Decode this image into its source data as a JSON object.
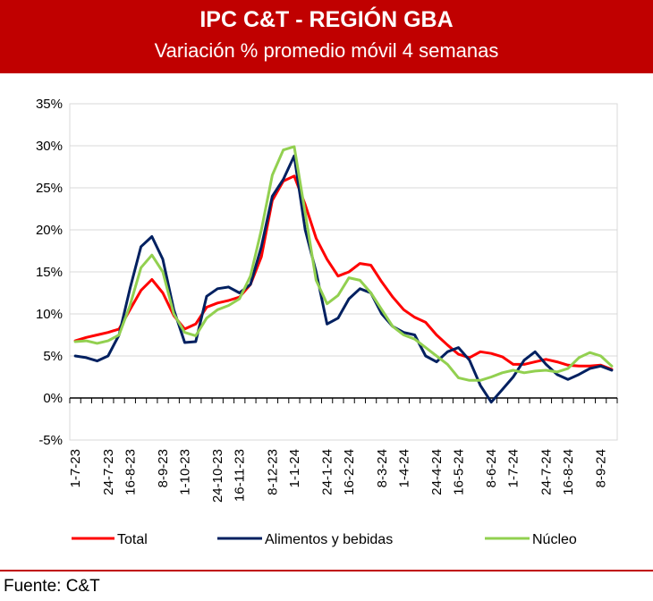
{
  "header": {
    "title": "IPC C&T - REGIÓN GBA",
    "subtitle": "Variación % promedio móvil 4 semanas"
  },
  "footer": {
    "source": "Fuente: C&T"
  },
  "chart_data": {
    "type": "line",
    "title": "IPC C&T - REGIÓN GBA",
    "subtitle": "Variación % promedio móvil 4 semanas",
    "xlabel": "",
    "ylabel": "",
    "ylim": [
      -5,
      35
    ],
    "y_ticks": [
      "-5%",
      "0%",
      "5%",
      "10%",
      "15%",
      "20%",
      "25%",
      "30%",
      "35%"
    ],
    "y_tick_values": [
      -5,
      0,
      5,
      10,
      15,
      20,
      25,
      30,
      35
    ],
    "x_tick_labels": [
      "1-7-23",
      "24-7-23",
      "16-8-23",
      "8-9-23",
      "1-10-23",
      "24-10-23",
      "16-11-23",
      "8-12-23",
      "1-1-24",
      "24-1-24",
      "16-2-24",
      "8-3-24",
      "1-4-24",
      "24-4-24",
      "16-5-24",
      "8-6-24",
      "1-7-24",
      "24-7-24",
      "16-8-24",
      "8-9-24"
    ],
    "grid": "horizontal",
    "legend_position": "bottom",
    "colors": {
      "Total": "#ff0000",
      "Alimentos y bebidas": "#002060",
      "Núcleo": "#92d050"
    },
    "series": [
      {
        "name": "Total",
        "color": "#ff0000",
        "values": [
          6.8,
          7.2,
          7.5,
          7.8,
          8.2,
          10.5,
          12.8,
          14.1,
          12.5,
          9.8,
          8.2,
          8.8,
          10.8,
          11.3,
          11.6,
          12.0,
          13.5,
          16.8,
          23.5,
          25.8,
          26.4,
          23.0,
          19.0,
          16.5,
          14.5,
          15.0,
          16.0,
          15.8,
          13.8,
          12.0,
          10.5,
          9.6,
          9.0,
          7.5,
          6.3,
          5.2,
          4.8,
          5.5,
          5.3,
          4.9,
          4.0,
          4.0,
          4.3,
          4.6,
          4.3,
          3.9,
          3.8,
          3.8,
          3.9,
          3.4
        ]
      },
      {
        "name": "Alimentos y bebidas",
        "color": "#002060",
        "values": [
          5.0,
          4.8,
          4.4,
          5.0,
          7.5,
          13.0,
          18.0,
          19.2,
          16.5,
          10.5,
          6.6,
          6.7,
          12.1,
          13.0,
          13.2,
          12.5,
          13.5,
          18.0,
          24.0,
          26.0,
          28.8,
          20.0,
          15.0,
          8.8,
          9.5,
          11.8,
          13.0,
          12.5,
          10.0,
          8.5,
          7.8,
          7.5,
          5.0,
          4.3,
          5.5,
          6.0,
          4.5,
          1.5,
          -0.5,
          1.0,
          2.5,
          4.5,
          5.5,
          4.0,
          2.8,
          2.2,
          2.8,
          3.5,
          3.8,
          3.3
        ]
      },
      {
        "name": "Núcleo",
        "color": "#92d050",
        "values": [
          6.7,
          6.8,
          6.5,
          6.8,
          7.5,
          11.0,
          15.5,
          17.0,
          15.0,
          10.0,
          7.8,
          7.4,
          9.5,
          10.5,
          11.0,
          11.8,
          14.5,
          20.0,
          26.5,
          29.5,
          29.9,
          22.0,
          14.0,
          11.2,
          12.2,
          14.3,
          14.0,
          12.5,
          10.5,
          8.5,
          7.5,
          7.0,
          6.0,
          5.0,
          4.0,
          2.4,
          2.1,
          2.1,
          2.5,
          3.0,
          3.3,
          3.0,
          3.2,
          3.3,
          3.1,
          3.5,
          4.8,
          5.4,
          5.0,
          3.8
        ]
      }
    ]
  }
}
